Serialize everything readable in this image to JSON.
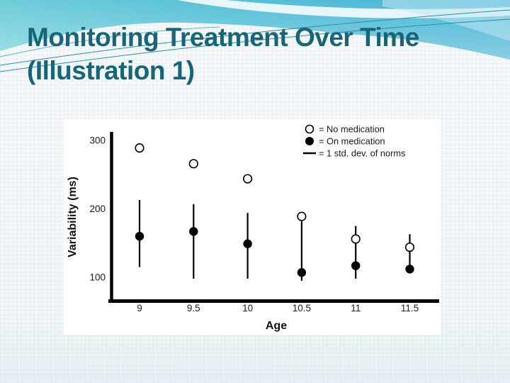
{
  "slide": {
    "title_line1": "Monitoring Treatment Over Time",
    "title_line2": "(Illustration 1)",
    "title_color": "#176577",
    "accent_wave_colors": [
      "#63c9d8",
      "#49b4d4",
      "#bfe8f2",
      "#2b8fa0"
    ]
  },
  "chart_data": {
    "type": "scatter",
    "title": "",
    "xlabel": "Age",
    "ylabel": "Variability (ms)",
    "x": [
      9,
      9.5,
      10,
      10.5,
      11,
      11.5
    ],
    "x_tick_labels": [
      "9",
      "9.5",
      "10",
      "10.5",
      "11",
      "11.5"
    ],
    "y_ticks": [
      300,
      200,
      100
    ],
    "ylim": [
      65,
      310
    ],
    "xlim": [
      8.75,
      11.75
    ],
    "grid": false,
    "legend_position": "top-right",
    "series": [
      {
        "name": "No medication",
        "marker": "open-circle",
        "values": [
          289,
          266,
          244,
          189,
          156,
          144
        ]
      },
      {
        "name": "On medication",
        "marker": "filled-circle",
        "values": [
          160,
          167,
          149,
          107,
          117,
          112
        ]
      },
      {
        "name": "1 std. dev. of norms",
        "marker": "line",
        "ranges": [
          [
            115,
            213
          ],
          [
            98,
            207
          ],
          [
            98,
            194
          ],
          [
            95,
            182
          ],
          [
            98,
            175
          ],
          [
            107,
            163
          ]
        ]
      }
    ],
    "legend": [
      {
        "symbol": "open-circle",
        "label": "= No medication"
      },
      {
        "symbol": "filled-circle",
        "label": "= On medication"
      },
      {
        "symbol": "dash",
        "label": "= 1 std. dev. of norms"
      }
    ]
  }
}
